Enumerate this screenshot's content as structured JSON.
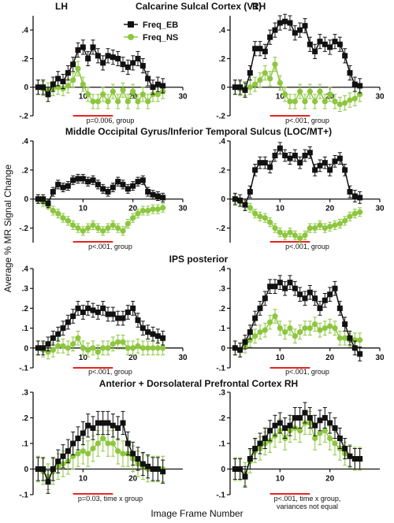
{
  "chart_data": {
    "type": "line",
    "xlabel": "Image Frame Number",
    "ylabel": "Average % MR Signal Change",
    "hemisphere_labels": [
      "LH",
      "RH"
    ],
    "legend": [
      {
        "name": "Freq_EB",
        "color": "#111111",
        "marker": "square"
      },
      {
        "name": "Freq_NS",
        "color": "#8dc63f",
        "marker": "circle"
      }
    ],
    "colors": {
      "eb": "#111111",
      "ns": "#8dc63f",
      "bar": "#e8231f"
    },
    "rows": [
      {
        "title": "Calcarine Sulcal Cortex (V1)",
        "panels": [
          {
            "xlim": [
              0,
              30
            ],
            "ylim": [
              -0.2,
              0.5
            ],
            "yticks": [
              -0.2,
              0,
              0.2,
              0.4
            ],
            "xticks": [
              10,
              20,
              30
            ],
            "stat_text": [
              "p=0.006, group"
            ],
            "bar_x": [
              8,
              16
            ],
            "eb": [
              0,
              0,
              -0.05,
              0.02,
              0.06,
              0.04,
              0.1,
              0.16,
              0.26,
              0.28,
              0.2,
              0.28,
              0.22,
              0.17,
              0.22,
              0.21,
              0.2,
              0.16,
              0.14,
              0.17,
              0.2,
              0.15,
              0.06,
              0.0,
              0.02,
              0.01
            ],
            "ns": [
              0,
              -0.01,
              -0.02,
              -0.01,
              0.0,
              -0.01,
              0.01,
              0.05,
              0.13,
              0.02,
              -0.05,
              -0.1,
              -0.1,
              -0.05,
              -0.1,
              -0.03,
              -0.1,
              -0.02,
              -0.1,
              -0.03,
              -0.1,
              -0.05,
              -0.1,
              -0.05,
              -0.05,
              -0.03
            ],
            "eb_err": 0.05,
            "ns_err": 0.05
          },
          {
            "xlim": [
              0,
              30
            ],
            "ylim": [
              -0.2,
              0.5
            ],
            "yticks": [
              -0.2,
              0,
              0.2,
              0.4
            ],
            "xticks": [
              10,
              20,
              30
            ],
            "stat_text": [
              "p<.001, group"
            ],
            "bar_x": [
              8,
              16
            ],
            "eb": [
              0,
              0,
              -0.02,
              0.1,
              0.27,
              0.27,
              0.25,
              0.35,
              0.4,
              0.45,
              0.46,
              0.45,
              0.38,
              0.4,
              0.43,
              0.3,
              0.25,
              0.32,
              0.3,
              0.28,
              0.32,
              0.3,
              0.22,
              0.1,
              0.02,
              0.01
            ],
            "ns": [
              0,
              -0.01,
              -0.01,
              0.0,
              0.02,
              0.05,
              0.1,
              0.06,
              0.16,
              0.03,
              -0.05,
              -0.1,
              -0.1,
              -0.03,
              -0.1,
              -0.03,
              -0.1,
              -0.03,
              -0.1,
              -0.05,
              -0.1,
              -0.12,
              -0.11,
              -0.09,
              -0.08,
              -0.05
            ],
            "eb_err": 0.05,
            "ns_err": 0.05
          }
        ]
      },
      {
        "title": "Middle Occipital Gyrus/Inferior Temporal Sulcus (LOC/MT+)",
        "panels": [
          {
            "xlim": [
              0,
              30
            ],
            "ylim": [
              -0.3,
              0.4
            ],
            "yticks": [
              -0.2,
              0,
              0.2,
              0.4
            ],
            "xticks": [
              10,
              20,
              30
            ],
            "stat_text": [
              "p<.001, group"
            ],
            "bar_x": [
              8,
              16
            ],
            "eb": [
              0,
              0,
              -0.03,
              0.05,
              0.1,
              0.08,
              0.09,
              0.13,
              0.14,
              0.14,
              0.12,
              0.13,
              0.1,
              0.07,
              0.05,
              0.08,
              0.12,
              0.1,
              0.07,
              0.09,
              0.12,
              0.13,
              0.05,
              0.03,
              0.02,
              0.01
            ],
            "ns": [
              0,
              -0.02,
              -0.04,
              -0.08,
              -0.1,
              -0.13,
              -0.15,
              -0.18,
              -0.2,
              -0.22,
              -0.2,
              -0.18,
              -0.2,
              -0.22,
              -0.2,
              -0.18,
              -0.2,
              -0.22,
              -0.17,
              -0.13,
              -0.1,
              -0.08,
              -0.08,
              -0.07,
              -0.07,
              -0.06
            ],
            "eb_err": 0.03,
            "ns_err": 0.03
          },
          {
            "xlim": [
              0,
              30
            ],
            "ylim": [
              -0.3,
              0.4
            ],
            "yticks": [
              -0.2,
              0,
              0.2,
              0.4
            ],
            "xticks": [
              10,
              20,
              30
            ],
            "stat_text": [
              "p<.001, group"
            ],
            "bar_x": [
              8,
              16
            ],
            "eb": [
              0,
              -0.01,
              -0.04,
              0.05,
              0.2,
              0.25,
              0.25,
              0.22,
              0.3,
              0.35,
              0.3,
              0.28,
              0.3,
              0.25,
              0.3,
              0.32,
              0.2,
              0.23,
              0.25,
              0.2,
              0.26,
              0.28,
              0.2,
              0.05,
              0.02,
              0.01
            ],
            "ns": [
              0,
              -0.02,
              -0.04,
              -0.06,
              -0.1,
              -0.12,
              -0.13,
              -0.16,
              -0.2,
              -0.23,
              -0.25,
              -0.23,
              -0.25,
              -0.27,
              -0.25,
              -0.2,
              -0.2,
              -0.18,
              -0.2,
              -0.19,
              -0.18,
              -0.17,
              -0.15,
              -0.12,
              -0.1,
              -0.09
            ],
            "eb_err": 0.04,
            "ns_err": 0.03
          }
        ]
      },
      {
        "title": "IPS posterior",
        "panels": [
          {
            "xlim": [
              0,
              30
            ],
            "ylim": [
              -0.1,
              0.4
            ],
            "yticks": [
              -0.1,
              0,
              0.1,
              0.2,
              0.3,
              0.4
            ],
            "xticks": [
              10,
              20,
              30
            ],
            "stat_text": [
              "p<.001, group"
            ],
            "bar_x": [
              8,
              16
            ],
            "eb": [
              0,
              0,
              0.02,
              0.05,
              0.07,
              0.1,
              0.13,
              0.16,
              0.2,
              0.18,
              0.2,
              0.19,
              0.18,
              0.2,
              0.17,
              0.17,
              0.15,
              0.15,
              0.18,
              0.2,
              0.14,
              0.1,
              0.08,
              0.07,
              0.06,
              0.05
            ],
            "ns": [
              0,
              -0.01,
              -0.02,
              -0.01,
              0.01,
              0.01,
              0.0,
              0.02,
              0.05,
              0.0,
              -0.01,
              0.0,
              -0.02,
              0.0,
              0.0,
              0.02,
              0.03,
              0.03,
              0.0,
              0.0,
              0.01,
              0.0,
              0.0,
              0.0,
              0.0,
              0.0
            ],
            "eb_err": 0.035,
            "ns_err": 0.035
          },
          {
            "xlim": [
              0,
              30
            ],
            "ylim": [
              -0.1,
              0.4
            ],
            "yticks": [
              -0.1,
              0,
              0.1,
              0.2,
              0.3,
              0.4
            ],
            "xticks": [
              10,
              20,
              30
            ],
            "stat_text": [
              "p<.001, group"
            ],
            "bar_x": [
              8,
              16
            ],
            "eb": [
              0,
              -0.01,
              0.03,
              0.08,
              0.15,
              0.2,
              0.25,
              0.31,
              0.31,
              0.33,
              0.3,
              0.33,
              0.3,
              0.27,
              0.25,
              0.28,
              0.25,
              0.2,
              0.24,
              0.27,
              0.3,
              0.2,
              0.12,
              0.05,
              0.0,
              -0.03
            ],
            "ns": [
              0,
              -0.01,
              0.01,
              0.04,
              0.06,
              0.08,
              0.09,
              0.13,
              0.16,
              0.1,
              0.08,
              0.1,
              0.06,
              0.08,
              0.1,
              0.1,
              0.12,
              0.09,
              0.1,
              0.11,
              0.1,
              0.05,
              0.05,
              0.04,
              0.04,
              0.04
            ],
            "eb_err": 0.035,
            "ns_err": 0.035
          }
        ]
      },
      {
        "title": "Anterior + Dorsolateral Prefrontal Cortex RH",
        "panels": [
          {
            "xlim": [
              0,
              30
            ],
            "ylim": [
              -0.1,
              0.3
            ],
            "yticks": [
              -0.1,
              0,
              0.1,
              0.2,
              0.3
            ],
            "xticks": [
              10,
              20
            ],
            "stat_text": [
              "p=0.03, time x group"
            ],
            "bar_x": [
              8,
              16
            ],
            "eb": [
              0,
              0,
              -0.05,
              0.0,
              0.03,
              0.05,
              0.07,
              0.1,
              0.12,
              0.14,
              0.17,
              0.16,
              0.18,
              0.18,
              0.18,
              0.17,
              0.16,
              0.18,
              0.1,
              0.06,
              0.04,
              0.02,
              0.01,
              0.0,
              0.0,
              -0.01
            ],
            "ns": [
              0,
              -0.01,
              -0.03,
              -0.01,
              0.01,
              0.02,
              0.03,
              0.05,
              0.06,
              0.07,
              0.06,
              0.08,
              0.1,
              0.12,
              0.1,
              0.1,
              0.07,
              0.06,
              0.06,
              0.04,
              0.02,
              0.01,
              0.0,
              0.0,
              0.0,
              0.0
            ],
            "eb_err": 0.045,
            "ns_err": 0.05
          },
          {
            "xlim": [
              0,
              30
            ],
            "ylim": [
              -0.1,
              0.3
            ],
            "yticks": [
              -0.1,
              0,
              0.1,
              0.2,
              0.3
            ],
            "xticks": [
              10,
              20
            ],
            "stat_text": [
              "p<.001, time x group,",
              "variances not equal"
            ],
            "bar_x": [
              8,
              16
            ],
            "eb": [
              0,
              0,
              -0.03,
              0.04,
              0.08,
              0.1,
              0.12,
              0.15,
              0.17,
              0.18,
              0.16,
              0.17,
              0.2,
              0.2,
              0.22,
              0.2,
              0.17,
              0.19,
              0.2,
              0.18,
              0.16,
              0.12,
              0.08,
              0.05,
              0.04,
              0.04
            ],
            "ns": [
              0,
              0,
              -0.02,
              0.03,
              0.07,
              0.08,
              0.1,
              0.11,
              0.13,
              0.15,
              0.12,
              0.15,
              0.16,
              0.15,
              0.18,
              0.18,
              0.12,
              0.14,
              0.15,
              0.12,
              0.1,
              0.08,
              0.06,
              0.05,
              0.04,
              0.04
            ],
            "eb_err": 0.04,
            "ns_err": 0.045
          }
        ]
      }
    ]
  }
}
